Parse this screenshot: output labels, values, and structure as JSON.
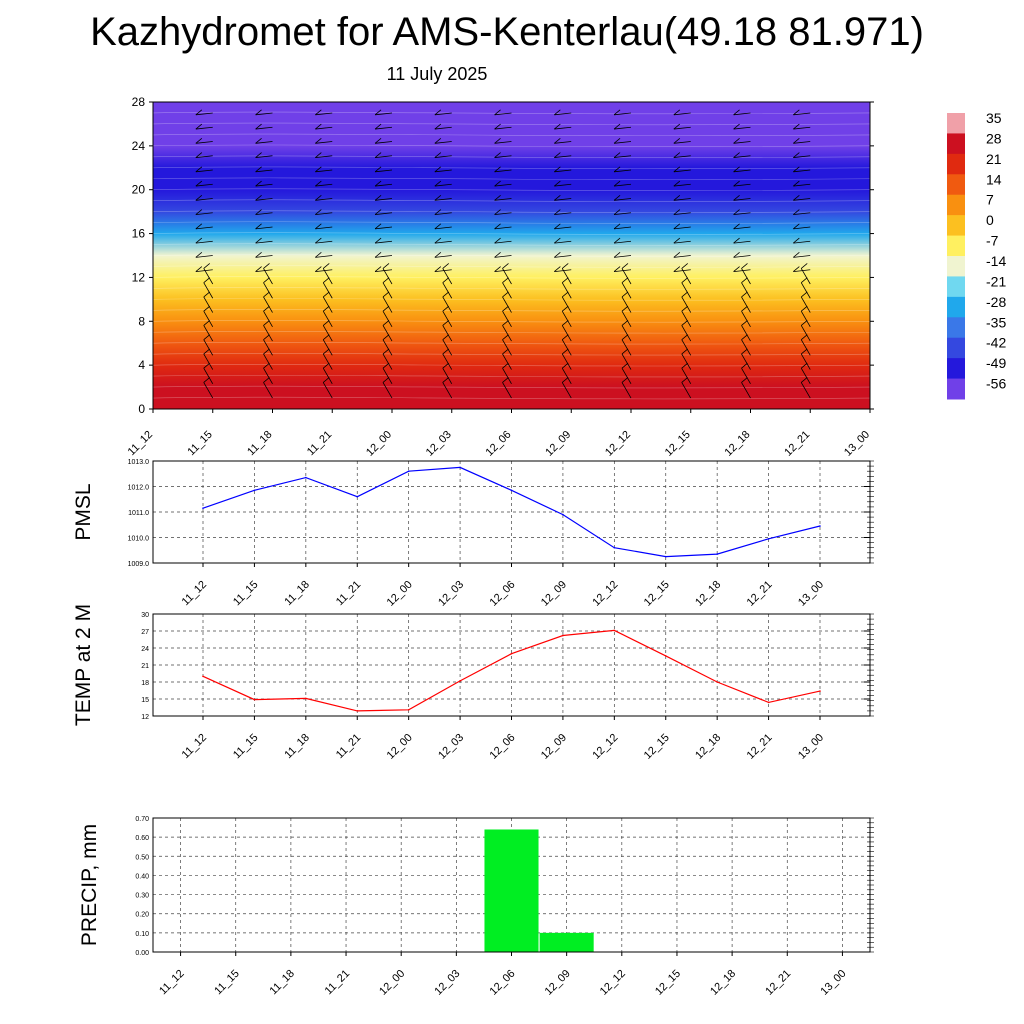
{
  "title": "Kazhydromet for AMS-Kenterlau(49.18 81.971)",
  "subtitle": "11 July 2025",
  "chart_data": [
    {
      "type": "heatmap",
      "x_categories": [
        "11_12",
        "11_15",
        "11_18",
        "11_21",
        "12_00",
        "12_03",
        "12_06",
        "12_09",
        "12_12",
        "12_15",
        "12_18",
        "12_21",
        "13_00"
      ],
      "y_ticks": [
        0,
        4,
        8,
        12,
        16,
        20,
        24,
        28
      ],
      "ylim": [
        0,
        28
      ],
      "colorbar": {
        "labels": [
          "35",
          "28",
          "21",
          "14",
          "7",
          "0",
          "-7",
          "-14",
          "-21",
          "-28",
          "-35",
          "-42",
          "-49",
          "-56"
        ],
        "colors": [
          "#f0a0a8",
          "#cc1020",
          "#e02a10",
          "#f05a10",
          "#f99010",
          "#fcc020",
          "#fff060",
          "#f0f4d0",
          "#70d8f0",
          "#20a8ec",
          "#3a78e8",
          "#3448e0",
          "#2418dc",
          "#7040e8"
        ]
      },
      "vertical_levels": [
        0,
        2,
        4,
        6,
        8,
        10,
        12,
        14,
        16,
        18,
        20,
        22,
        24,
        26,
        28
      ],
      "temperature_by_level": [
        30,
        27,
        24,
        17,
        10,
        3,
        -6,
        -16,
        -28,
        -40,
        -47,
        -50,
        -54,
        -57,
        -59
      ]
    },
    {
      "type": "line",
      "ylabel": "PMSL",
      "categories": [
        "11_12",
        "11_15",
        "11_18",
        "11_21",
        "12_00",
        "12_03",
        "12_06",
        "12_09",
        "12_12",
        "12_15",
        "12_18",
        "12_21",
        "13_00"
      ],
      "values": [
        1011.15,
        1011.85,
        1012.35,
        1011.6,
        1012.6,
        1012.75,
        1011.85,
        1010.9,
        1009.6,
        1009.25,
        1009.35,
        1009.95,
        1010.45
      ],
      "ylim": [
        1009.0,
        1013.0
      ],
      "y_ticks": [
        "1009.0",
        "1010.0",
        "1011.0",
        "1012.0",
        "1013.0"
      ],
      "color": "#0000ff",
      "grid": true
    },
    {
      "type": "line",
      "ylabel": "TEMP at 2 M",
      "categories": [
        "11_12",
        "11_15",
        "11_18",
        "11_21",
        "12_00",
        "12_03",
        "12_06",
        "12_09",
        "12_12",
        "12_15",
        "12_18",
        "12_21",
        "13_00"
      ],
      "values": [
        19.0,
        14.9,
        15.1,
        12.9,
        13.1,
        18.2,
        23.0,
        26.2,
        27.1,
        22.6,
        18.0,
        14.4,
        16.4
      ],
      "ylim": [
        12,
        30
      ],
      "y_ticks": [
        "12",
        "15",
        "18",
        "21",
        "24",
        "27",
        "30"
      ],
      "color": "#ff0000",
      "grid": true
    },
    {
      "type": "bar",
      "ylabel": "PRECIP, mm",
      "categories": [
        "11_12",
        "11_15",
        "11_18",
        "11_21",
        "12_00",
        "12_03",
        "12_06",
        "12_09",
        "12_12",
        "12_15",
        "12_18",
        "12_21",
        "13_00"
      ],
      "values": [
        0,
        0,
        0,
        0,
        0,
        0,
        0.64,
        0.1,
        0,
        0,
        0,
        0,
        0
      ],
      "ylim": [
        0,
        0.7
      ],
      "y_ticks": [
        "0.00",
        "0.10",
        "0.20",
        "0.30",
        "0.40",
        "0.50",
        "0.60",
        "0.70"
      ],
      "color": "#00ee22",
      "grid": true
    }
  ]
}
